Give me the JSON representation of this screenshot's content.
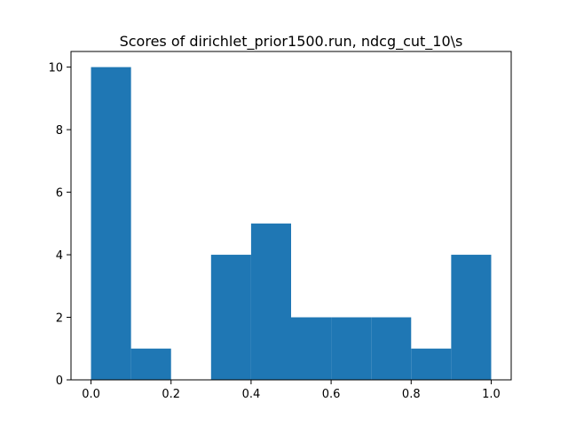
{
  "chart_data": {
    "type": "bar",
    "title": "Scores of dirichlet_prior1500.run, ndcg_cut_10\\s",
    "xlabel": "",
    "ylabel": "",
    "bins": [
      {
        "x0": 0.0,
        "x1": 0.1,
        "count": 10
      },
      {
        "x0": 0.1,
        "x1": 0.2,
        "count": 1
      },
      {
        "x0": 0.2,
        "x1": 0.3,
        "count": 0
      },
      {
        "x0": 0.3,
        "x1": 0.4,
        "count": 4
      },
      {
        "x0": 0.4,
        "x1": 0.5,
        "count": 5
      },
      {
        "x0": 0.5,
        "x1": 0.6,
        "count": 2
      },
      {
        "x0": 0.6,
        "x1": 0.7,
        "count": 2
      },
      {
        "x0": 0.7,
        "x1": 0.8,
        "count": 2
      },
      {
        "x0": 0.8,
        "x1": 0.9,
        "count": 1
      },
      {
        "x0": 0.9,
        "x1": 1.0,
        "count": 4
      }
    ],
    "xlim": [
      -0.05,
      1.05
    ],
    "ylim": [
      0,
      10.5
    ],
    "xticks": [
      "0.0",
      "0.2",
      "0.4",
      "0.6",
      "0.8",
      "1.0"
    ],
    "yticks": [
      "0",
      "2",
      "4",
      "6",
      "8",
      "10"
    ],
    "bar_color": "#1f77b4",
    "grid": false,
    "legend": "none"
  }
}
